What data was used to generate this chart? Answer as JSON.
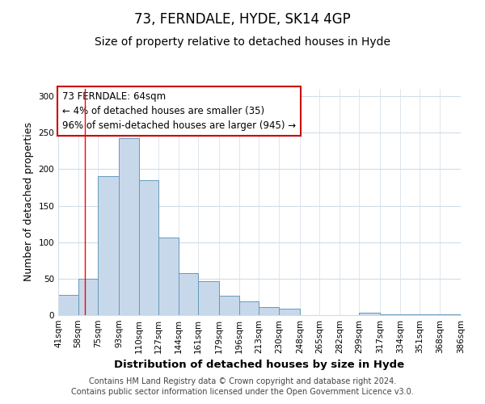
{
  "title": "73, FERNDALE, HYDE, SK14 4GP",
  "subtitle": "Size of property relative to detached houses in Hyde",
  "xlabel": "Distribution of detached houses by size in Hyde",
  "ylabel": "Number of detached properties",
  "bar_color": "#c8d8eb",
  "bar_edge_color": "#6699bb",
  "grid_color": "#d0dde8",
  "vline_x": 64,
  "vline_color": "red",
  "annotation_lines": [
    "73 FERNDALE: 64sqm",
    "← 4% of detached houses are smaller (35)",
    "96% of semi-detached houses are larger (945) →"
  ],
  "bin_edges": [
    41,
    58,
    75,
    93,
    110,
    127,
    144,
    161,
    179,
    196,
    213,
    230,
    248,
    265,
    282,
    299,
    317,
    334,
    351,
    368,
    386
  ],
  "bin_counts": [
    28,
    50,
    190,
    243,
    185,
    106,
    58,
    46,
    27,
    19,
    11,
    9,
    0,
    0,
    0,
    3,
    1,
    1,
    1,
    1
  ],
  "ylim": [
    0,
    310
  ],
  "yticks": [
    0,
    50,
    100,
    150,
    200,
    250,
    300
  ],
  "footer_lines": [
    "Contains HM Land Registry data © Crown copyright and database right 2024.",
    "Contains public sector information licensed under the Open Government Licence v3.0."
  ],
  "title_fontsize": 12,
  "subtitle_fontsize": 10,
  "xlabel_fontsize": 9.5,
  "ylabel_fontsize": 9,
  "footer_fontsize": 7,
  "tick_label_fontsize": 7.5,
  "annotation_fontsize": 8.5,
  "annotation_box_color": "white",
  "annotation_box_edge_color": "#cc0000"
}
